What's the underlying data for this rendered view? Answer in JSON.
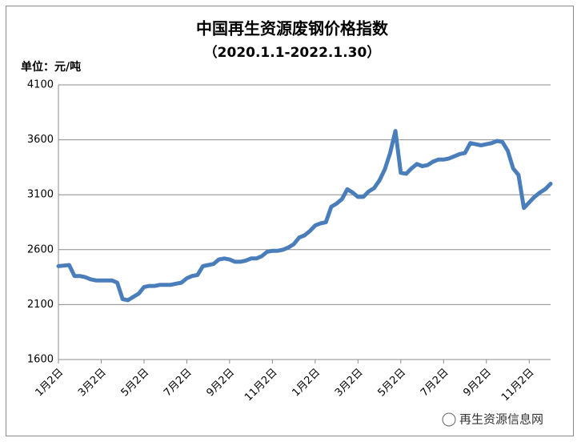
{
  "chart_data": {
    "type": "line",
    "title": "中国再生资源废钢价格指数",
    "subtitle": "（2020.1.1-2022.1.30）",
    "unit_label": "单位：元/吨",
    "watermark": "再生资源信息网",
    "color": "#4a7ebb",
    "grid": true,
    "ylim": [
      1600,
      4100
    ],
    "yticks": [
      1600,
      2100,
      2600,
      3100,
      3600,
      4100
    ],
    "categories": [
      "1月2日",
      null,
      null,
      null,
      null,
      null,
      null,
      null,
      "3月2日",
      null,
      null,
      null,
      null,
      null,
      null,
      null,
      "5月2日",
      null,
      null,
      null,
      null,
      null,
      null,
      null,
      "7月2日",
      null,
      null,
      null,
      null,
      null,
      null,
      null,
      "9月2日",
      null,
      null,
      null,
      null,
      null,
      null,
      null,
      "11月2日",
      null,
      null,
      null,
      null,
      null,
      null,
      null,
      "1月2日",
      null,
      null,
      null,
      null,
      null,
      null,
      null,
      "3月2日",
      null,
      null,
      null,
      null,
      null,
      null,
      null,
      "5月2日",
      null,
      null,
      null,
      null,
      null,
      null,
      null,
      "7月2日",
      null,
      null,
      null,
      null,
      null,
      null,
      null,
      "9月2日",
      null,
      null,
      null,
      null,
      null,
      null,
      null,
      "11月2日",
      null,
      null,
      null,
      null
    ],
    "values": [
      2450,
      2455,
      2460,
      2360,
      2360,
      2350,
      2330,
      2320,
      2320,
      2320,
      2320,
      2300,
      2150,
      2140,
      2170,
      2200,
      2260,
      2270,
      2270,
      2280,
      2280,
      2280,
      2290,
      2300,
      2340,
      2360,
      2370,
      2450,
      2460,
      2470,
      2510,
      2520,
      2510,
      2490,
      2490,
      2500,
      2520,
      2520,
      2540,
      2580,
      2590,
      2590,
      2600,
      2620,
      2650,
      2710,
      2730,
      2770,
      2820,
      2840,
      2850,
      2990,
      3020,
      3060,
      3150,
      3120,
      3080,
      3080,
      3130,
      3160,
      3230,
      3330,
      3480,
      3680,
      3300,
      3290,
      3340,
      3380,
      3360,
      3370,
      3400,
      3420,
      3420,
      3430,
      3450,
      3470,
      3480,
      3570,
      3560,
      3550,
      3560,
      3570,
      3590,
      3580,
      3500,
      3340,
      3280,
      2980,
      3030,
      3080,
      3120,
      3150,
      3200
    ]
  }
}
